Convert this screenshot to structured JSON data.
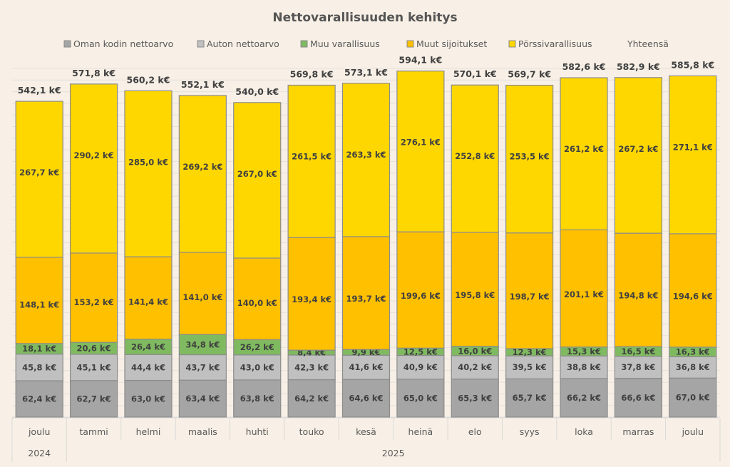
{
  "chart_data": {
    "type": "bar",
    "stacked": true,
    "title": "Nettovarallisuuden kehitys",
    "xlabel": "",
    "ylabel": "",
    "value_suffix": " k€",
    "grid": true,
    "legend_position": "top",
    "categories": [
      "joulu",
      "tammi",
      "helmi",
      "maalis",
      "huhti",
      "touko",
      "kesä",
      "heinä",
      "elo",
      "syys",
      "loka",
      "marras",
      "joulu"
    ],
    "category_groups": [
      {
        "label": "2024",
        "count": 1
      },
      {
        "label": "2025",
        "count": 12
      }
    ],
    "series": [
      {
        "name": "Oman kodin nettoarvo",
        "color": "#a5a5a5",
        "values": [
          62.4,
          62.7,
          63.0,
          63.4,
          63.8,
          64.2,
          64.6,
          65.0,
          65.3,
          65.7,
          66.2,
          66.6,
          67.0
        ]
      },
      {
        "name": "Auton nettoarvo",
        "color": "#c0c0c0",
        "values": [
          45.8,
          45.1,
          44.4,
          43.7,
          43.0,
          42.3,
          41.6,
          40.9,
          40.2,
          39.5,
          38.8,
          37.8,
          36.8
        ]
      },
      {
        "name": "Muu varallisuus",
        "color": "#7fba60",
        "values": [
          18.1,
          20.6,
          26.4,
          34.8,
          26.2,
          8.4,
          9.9,
          12.5,
          16.0,
          12.3,
          15.3,
          16.5,
          16.3
        ]
      },
      {
        "name": "Muut sijoitukset",
        "color": "#ffc000",
        "values": [
          148.1,
          153.2,
          141.4,
          141.0,
          140.0,
          193.4,
          193.7,
          199.6,
          195.8,
          198.7,
          201.1,
          194.8,
          194.6
        ]
      },
      {
        "name": "Pörssivarallisuus",
        "color": "#ffd700",
        "values": [
          267.7,
          290.2,
          285.0,
          269.2,
          267.0,
          261.5,
          263.3,
          276.1,
          252.8,
          253.5,
          261.2,
          267.2,
          271.1
        ]
      },
      {
        "name": "Yhteensä",
        "color": null,
        "values": [
          542.1,
          571.8,
          560.2,
          552.1,
          540.0,
          569.8,
          573.1,
          594.1,
          570.1,
          569.7,
          582.6,
          582.9,
          585.8
        ]
      }
    ],
    "labels": {
      "Oman kodin nettoarvo": [
        "62,4 k€",
        "62,7 k€",
        "63,0 k€",
        "63,4 k€",
        "63,8 k€",
        "64,2 k€",
        "64,6 k€",
        "65,0 k€",
        "65,3 k€",
        "65,7 k€",
        "66,2 k€",
        "66,6 k€",
        "67,0 k€"
      ],
      "Auton nettoarvo": [
        "45,8 k€",
        "45,1 k€",
        "44,4 k€",
        "43,7 k€",
        "43,0 k€",
        "42,3 k€",
        "41,6 k€",
        "40,9 k€",
        "40,2 k€",
        "39,5 k€",
        "38,8 k€",
        "37,8 k€",
        "36,8 k€"
      ],
      "Muu varallisuus": [
        "18,1 k€",
        "20,6 k€",
        "26,4 k€",
        "34,8 k€",
        "26,2 k€",
        "8,4 k€",
        "9,9 k€",
        "12,5 k€",
        "16,0 k€",
        "12,3 k€",
        "15,3 k€",
        "16,5 k€",
        "16,3 k€"
      ],
      "Muut sijoitukset": [
        "148,1 k€",
        "153,2 k€",
        "141,4 k€",
        "141,0 k€",
        "140,0 k€",
        "193,4 k€",
        "193,7 k€",
        "199,6 k€",
        "195,8 k€",
        "198,7 k€",
        "201,1 k€",
        "194,8 k€",
        "194,6 k€"
      ],
      "Pörssivarallisuus": [
        "267,7 k€",
        "290,2 k€",
        "285,0 k€",
        "269,2 k€",
        "267,0 k€",
        "261,5 k€",
        "263,3 k€",
        "276,1 k€",
        "252,8 k€",
        "253,5 k€",
        "261,2 k€",
        "267,2 k€",
        "271,1 k€"
      ],
      "Yhteensä": [
        "542,1 k€",
        "571,8 k€",
        "560,2 k€",
        "552,1 k€",
        "540,0 k€",
        "569,8 k€",
        "573,1 k€",
        "594,1 k€",
        "570,1 k€",
        "569,7 k€",
        "582,6 k€",
        "582,9 k€",
        "585,8 k€"
      ]
    },
    "ylim": [
      0,
      612
    ]
  }
}
